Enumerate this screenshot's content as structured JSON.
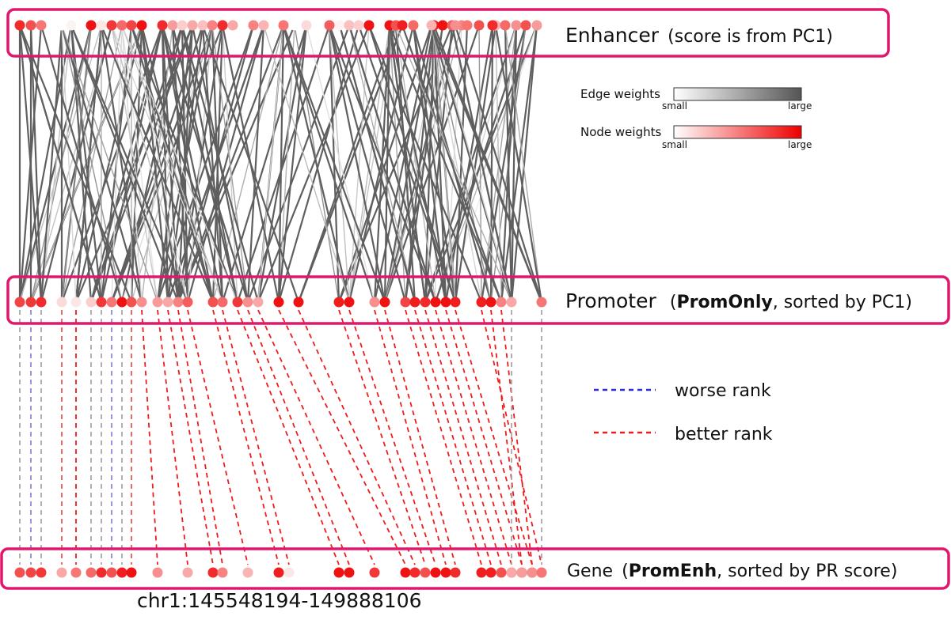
{
  "rows": {
    "enhancer": {
      "name": "Enhancer",
      "note": "(score is from PC1)"
    },
    "promoter": {
      "name": "Promoter",
      "paren_open": "(",
      "bold": "PromOnly",
      "rest": ", sorted by PC1)"
    },
    "gene": {
      "name": "Gene",
      "paren_open": "(",
      "bold": "PromEnh",
      "rest": ", sorted by PR score)"
    }
  },
  "legend": {
    "edge": {
      "title": "Edge weights",
      "small": "small",
      "large": "large",
      "color_small": "#ffffff",
      "color_large": "#555555"
    },
    "node": {
      "title": "Node weights",
      "small": "small",
      "large": "large",
      "color_small": "#ffffff",
      "color_large": "#ee0000"
    },
    "worse": {
      "label": "worse rank",
      "color": "#2b2bdd"
    },
    "better": {
      "label": "better rank",
      "color": "#ee1c1c"
    }
  },
  "coordinate": "chr1:145548194-149888106",
  "colors": {
    "frame": "#e0186c",
    "edge_dark": "#5f5f5f",
    "neutral_link": "#a8a8a8"
  },
  "enhancer_nodes": [
    0.85,
    0.7,
    0.55,
    0.0,
    0.05,
    0.95,
    0.1,
    0.8,
    0.6,
    0.75,
    0.95,
    0.85,
    0.4,
    0.2,
    0.35,
    0.25,
    0.5,
    0.85,
    0.35,
    0.5,
    0.3,
    0.55,
    0.0,
    0.15,
    0.65,
    0.05,
    0.25,
    0.2,
    0.95,
    0.95,
    0.7,
    0.9,
    0.6,
    0.9,
    0.95,
    0.65,
    0.5,
    0.3,
    0.6,
    0.45,
    0.7,
    0.4,
    0.85,
    0.7,
    0.55,
    0.45,
    0.3
  ],
  "promoter_nodes": [
    0.75,
    0.8,
    0.85,
    0.15,
    0.1,
    0.2,
    0.8,
    0.55,
    0.95,
    0.7,
    0.45,
    0.4,
    0.35,
    0.5,
    0.65,
    0.7,
    0.6,
    0.8,
    0.45,
    0.35,
    0.95,
    0.95,
    0.9,
    0.95,
    0.45,
    0.95,
    0.75,
    0.9,
    0.85,
    0.95,
    0.95,
    0.9,
    0.9,
    0.95,
    0.5,
    0.35,
    0.55
  ],
  "gene_nodes": [
    0.7,
    0.75,
    0.8,
    0.35,
    0.55,
    0.6,
    0.85,
    0.7,
    0.9,
    0.95,
    0.45,
    0.35,
    0.85,
    0.5,
    0.3,
    0.9,
    0.1,
    0.95,
    0.95,
    0.8,
    0.95,
    0.85,
    0.7,
    0.95,
    0.95,
    0.85,
    0.9,
    0.9,
    0.7,
    0.75,
    0.9,
    0.95,
    0.5,
    0.4,
    0.45,
    0.35,
    0.55
  ]
}
